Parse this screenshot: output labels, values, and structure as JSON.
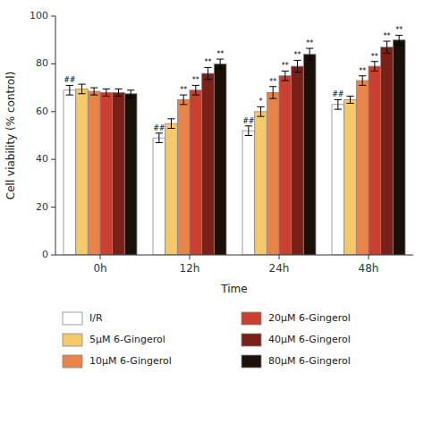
{
  "chart_data": {
    "type": "bar",
    "categories": [
      "0h",
      "12h",
      "24h",
      "48h"
    ],
    "xlabel": "Time",
    "ylabel": "Cell viability (% control)",
    "ylim": [
      0,
      100
    ],
    "yticks": [
      0,
      20,
      40,
      60,
      80,
      100
    ],
    "grid": false,
    "legend": "bottom",
    "series": [
      {
        "name": "I/R",
        "color": "#ffffff",
        "values": [
          69,
          49,
          52,
          63
        ],
        "errors": [
          2,
          2,
          2,
          2
        ],
        "annotations": [
          "##",
          "##",
          "##",
          "##"
        ]
      },
      {
        "name": "5μM 6-Gingerol",
        "color": "#f5c96a",
        "values": [
          69.5,
          55,
          60,
          65
        ],
        "errors": [
          2,
          2,
          2,
          1.5
        ],
        "annotations": [
          null,
          null,
          "*",
          null
        ]
      },
      {
        "name": "10μM 6-Gingerol",
        "color": "#e8834a",
        "values": [
          68.5,
          65,
          68,
          73
        ],
        "errors": [
          1.5,
          2,
          2.5,
          2
        ],
        "annotations": [
          null,
          "**",
          "**",
          "**"
        ]
      },
      {
        "name": "20μM 6-Gingerol",
        "color": "#c94030",
        "values": [
          68,
          69,
          75,
          79
        ],
        "errors": [
          1.5,
          2,
          2,
          2
        ],
        "annotations": [
          null,
          "**",
          "**",
          "**"
        ]
      },
      {
        "name": "40μM 6-Gingerol",
        "color": "#7a2018",
        "values": [
          68,
          76,
          79,
          87
        ],
        "errors": [
          1.5,
          2.5,
          2.5,
          2.5
        ],
        "annotations": [
          null,
          "**",
          "**",
          "**"
        ]
      },
      {
        "name": "80μM 6-Gingerol",
        "color": "#1a1008",
        "values": [
          67.5,
          80,
          84,
          90
        ],
        "errors": [
          1.5,
          2,
          2.5,
          2
        ],
        "annotations": [
          null,
          "**",
          "**",
          "**"
        ]
      }
    ]
  }
}
